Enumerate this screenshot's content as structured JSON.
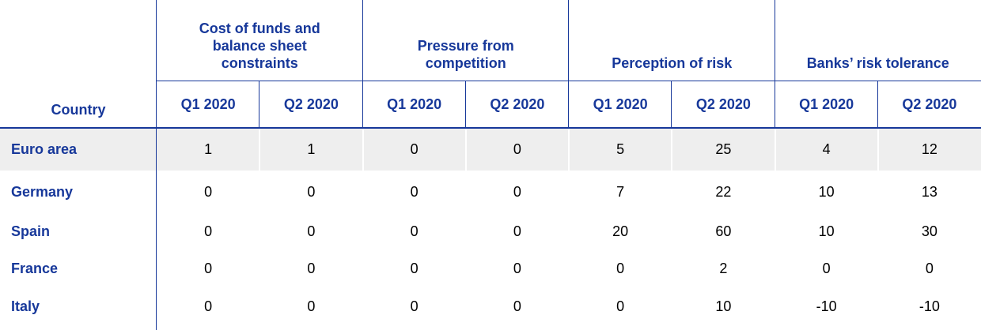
{
  "table": {
    "header": {
      "country": "Country",
      "groups": [
        {
          "title": "Cost of funds and balance sheet constraints",
          "periods": [
            "Q1 2020",
            "Q2 2020"
          ]
        },
        {
          "title": "Pressure from competition",
          "periods": [
            "Q1 2020",
            "Q2 2020"
          ]
        },
        {
          "title": "Perception of risk",
          "periods": [
            "Q1 2020",
            "Q2 2020"
          ]
        },
        {
          "title": "Banks’ risk tolerance",
          "periods": [
            "Q1 2020",
            "Q2 2020"
          ]
        }
      ]
    },
    "rows": [
      {
        "country": "Euro area",
        "values": [
          1,
          1,
          0,
          0,
          5,
          25,
          4,
          12
        ]
      },
      {
        "country": "Germany",
        "values": [
          0,
          0,
          0,
          0,
          7,
          22,
          10,
          13
        ]
      },
      {
        "country": "Spain",
        "values": [
          0,
          0,
          0,
          0,
          20,
          60,
          10,
          30
        ]
      },
      {
        "country": "France",
        "values": [
          0,
          0,
          0,
          0,
          0,
          2,
          0,
          0
        ]
      },
      {
        "country": "Italy",
        "values": [
          0,
          0,
          0,
          0,
          0,
          10,
          -10,
          -10
        ]
      }
    ]
  }
}
